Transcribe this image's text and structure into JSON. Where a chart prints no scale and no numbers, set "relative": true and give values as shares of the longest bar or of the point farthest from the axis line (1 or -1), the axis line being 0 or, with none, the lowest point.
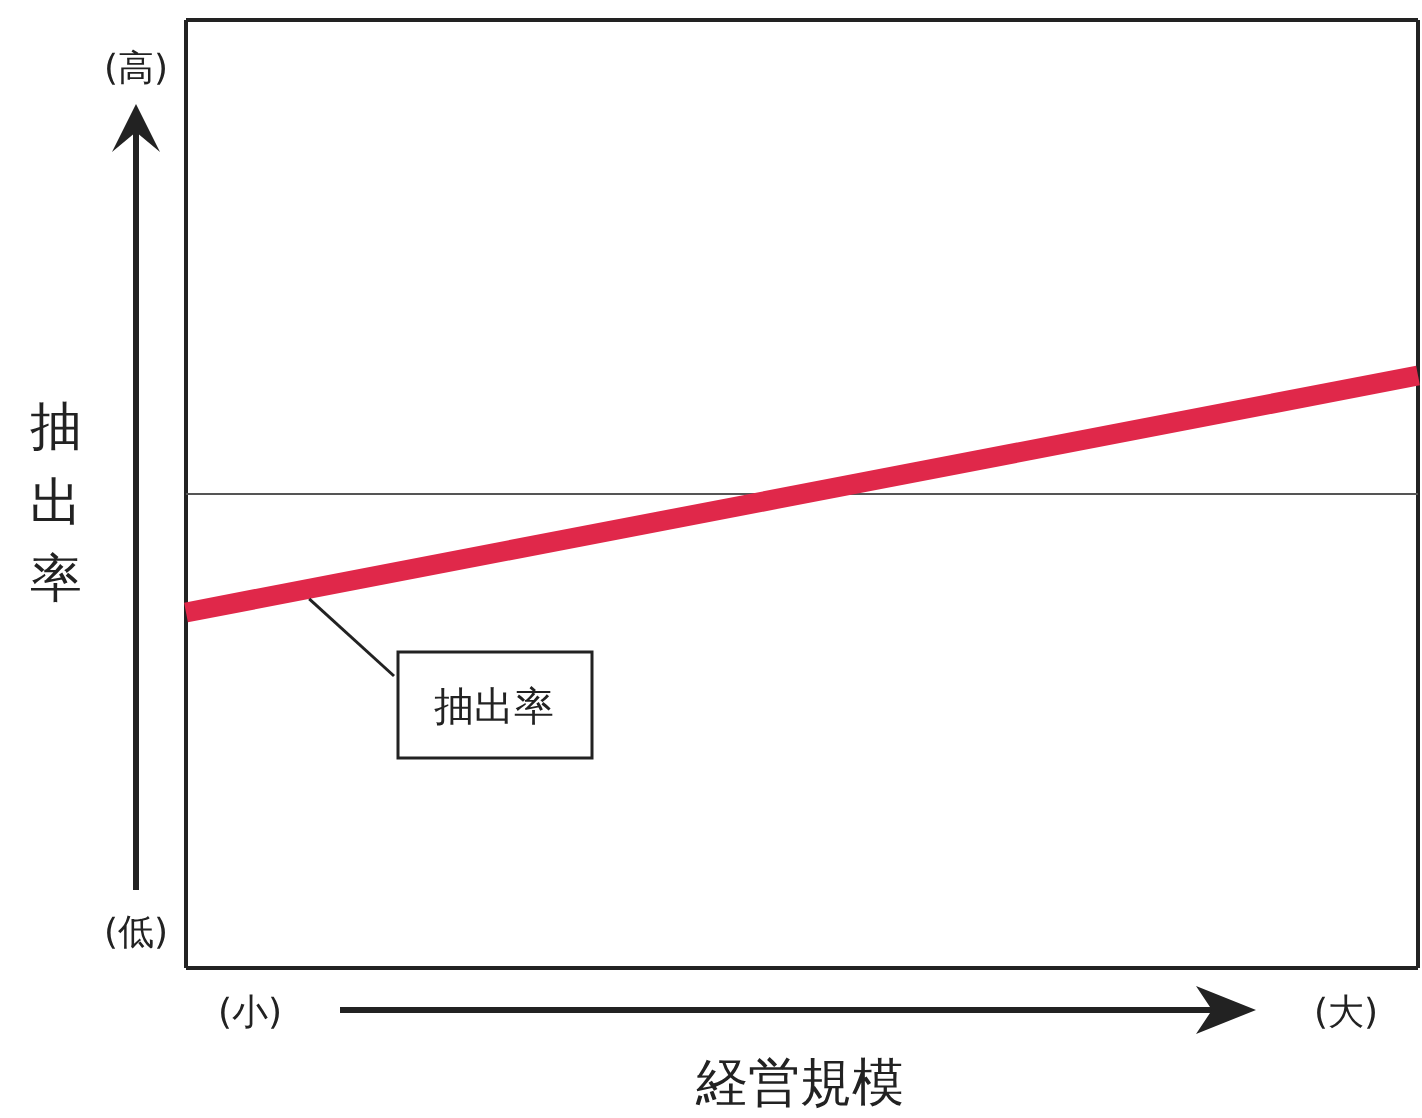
{
  "chart_data": {
    "type": "line",
    "relative": true,
    "xlabel": "経営規模",
    "ylabel": "抽出率",
    "categories": [
      null,
      null
    ],
    "series": [
      {
        "name": "抽出率",
        "color": "#e0284a",
        "values": [
          0.6,
          1
        ]
      }
    ],
    "ref_lines": [
      {
        "axis": "y",
        "value": 0.8,
        "color": "#555555"
      }
    ],
    "annotations": [
      "(高)",
      "(低)",
      "(小)",
      "(大)"
    ]
  }
}
